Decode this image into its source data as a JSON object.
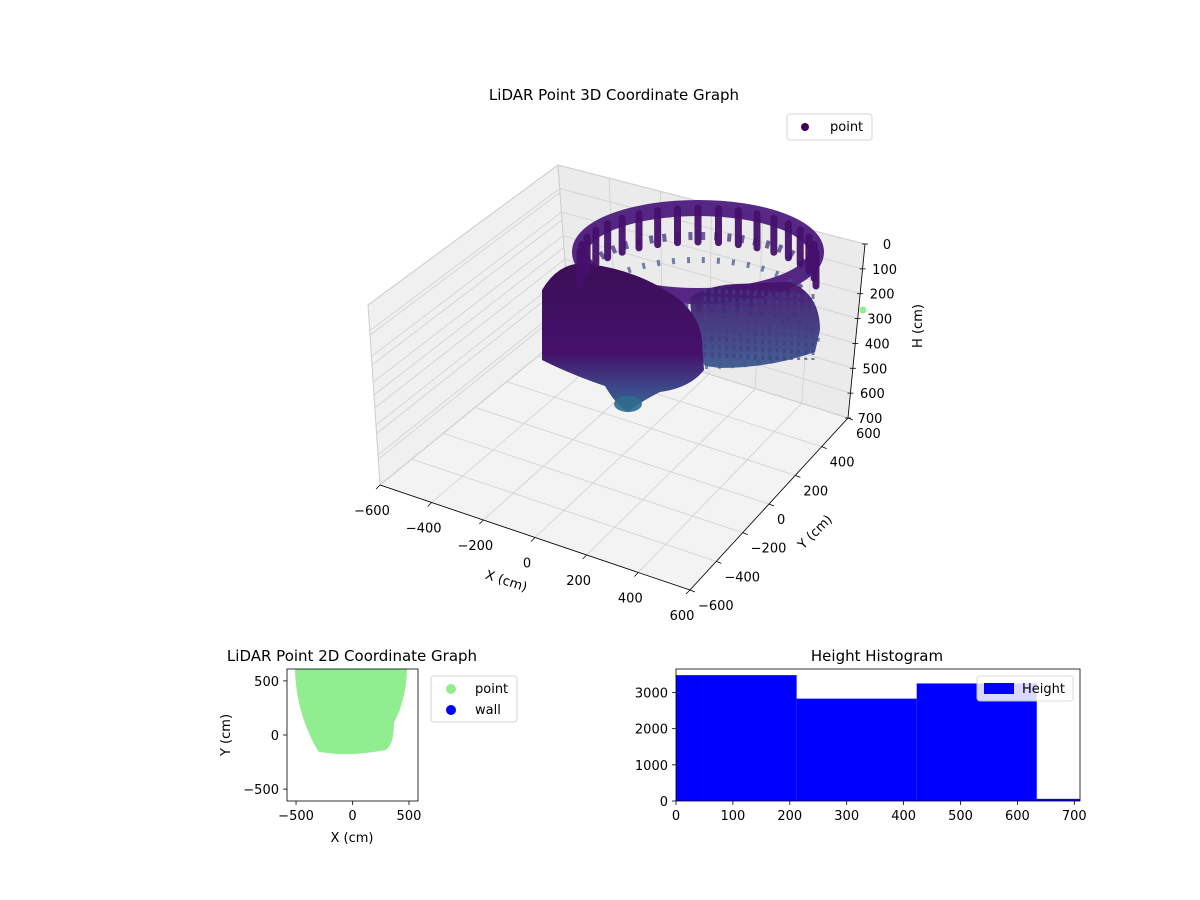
{
  "chart_data": [
    {
      "type": "scatter3d",
      "title": "LiDAR Point 3D Coordinate Graph",
      "xlabel": "X (cm)",
      "ylabel": "Y (cm)",
      "zlabel": "H (cm)",
      "xlim": [
        -600,
        600
      ],
      "ylim": [
        -600,
        600
      ],
      "zlim": [
        0,
        700
      ],
      "zaxis_inverted": true,
      "x_ticks": [
        "−600",
        "−400",
        "−200",
        "0",
        "200",
        "400",
        "600"
      ],
      "y_ticks": [
        "−600",
        "−400",
        "−200",
        "0",
        "200",
        "400",
        "600"
      ],
      "z_ticks": [
        "0",
        "100",
        "200",
        "300",
        "400",
        "500",
        "600",
        "700"
      ],
      "legend": {
        "placement": "top-right",
        "entries": [
          "point"
        ]
      },
      "colormap": "viridis",
      "grid": true
    },
    {
      "type": "scatter",
      "title": "LiDAR Point 2D Coordinate Graph",
      "xlabel": "X (cm)",
      "ylabel": "Y (cm)",
      "xlim": [
        -580,
        580
      ],
      "ylim": [
        -610,
        610
      ],
      "x_ticks": [
        -500,
        0,
        500
      ],
      "y_ticks": [
        -500,
        0,
        500
      ],
      "series": [
        {
          "name": "point",
          "color": "#90ee90"
        },
        {
          "name": "wall",
          "color": "#0000ff"
        }
      ],
      "legend": {
        "placement": "outside-right"
      }
    },
    {
      "type": "bar",
      "title": "Height Histogram",
      "bins": [
        [
          0,
          212
        ],
        [
          212,
          423
        ],
        [
          423,
          634
        ],
        [
          634,
          710
        ]
      ],
      "values": [
        3480,
        2830,
        3250,
        60
      ],
      "xlim": [
        0,
        710
      ],
      "ylim": [
        0,
        3650
      ],
      "x_ticks": [
        0,
        100,
        200,
        300,
        400,
        500,
        600,
        700
      ],
      "y_ticks": [
        0,
        1000,
        2000,
        3000
      ],
      "series": [
        {
          "name": "Height",
          "color": "#0000ff"
        }
      ],
      "legend": {
        "placement": "top-right"
      }
    }
  ]
}
